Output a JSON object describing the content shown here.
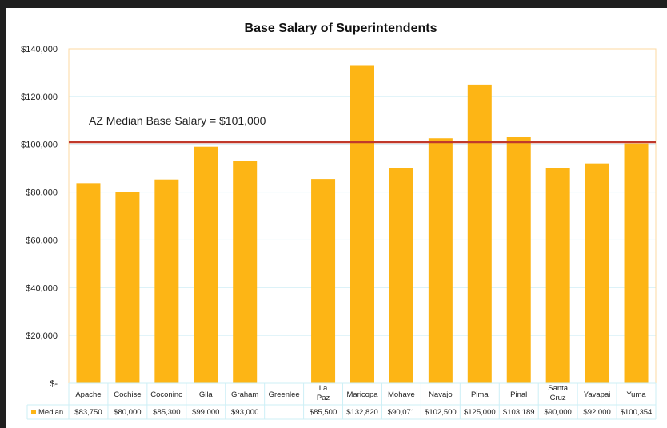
{
  "chart_data": {
    "type": "bar",
    "title": "Base Salary of Superintendents",
    "categories": [
      "Apache",
      "Cochise",
      "Coconino",
      "Gila",
      "Graham",
      "Greenlee",
      "La Paz",
      "Maricopa",
      "Mohave",
      "Navajo",
      "Pima",
      "Pinal",
      "Santa Cruz",
      "Yavapai",
      "Yuma"
    ],
    "series": [
      {
        "name": "Median",
        "color": "#FDB515",
        "values": [
          83750,
          80000,
          85300,
          99000,
          93000,
          null,
          85500,
          132820,
          90071,
          102500,
          125000,
          103189,
          90000,
          92000,
          100354
        ],
        "labels": [
          "$83,750",
          "$80,000",
          "$85,300",
          "$99,000",
          "$93,000",
          "",
          "$85,500",
          "$132,820",
          "$90,071",
          "$102,500",
          "$125,000",
          "$103,189",
          "$90,000",
          "$92,000",
          "$100,354"
        ]
      }
    ],
    "ylim": [
      0,
      140000
    ],
    "yticks": [
      0,
      20000,
      40000,
      60000,
      80000,
      100000,
      120000,
      140000
    ],
    "ytick_labels": [
      "$-",
      "$20,000",
      "$40,000",
      "$60,000",
      "$80,000",
      "$100,000",
      "$120,000",
      "$140,000"
    ],
    "reference_line": {
      "value": 101000,
      "label": "AZ Median Base Salary = $101,000",
      "color": "#C0392B"
    },
    "grid": true,
    "legend": "data-table",
    "gridline_color": "#D0EEF5"
  }
}
